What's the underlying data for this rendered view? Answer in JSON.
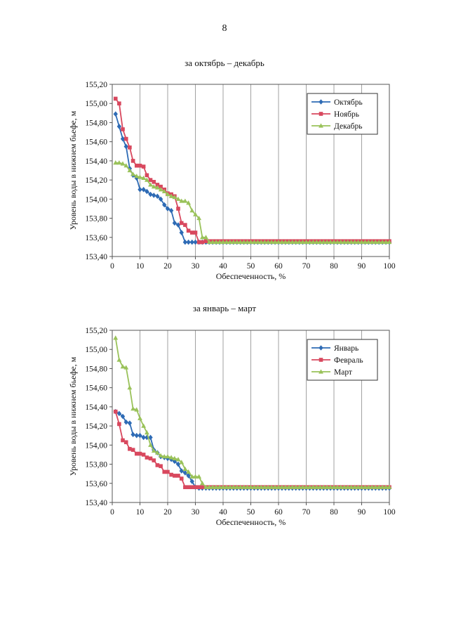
{
  "page": {
    "number": "8"
  },
  "chart_data": [
    {
      "type": "line",
      "title": "за октябрь – декабрь",
      "xlabel": "Обеспеченность, %",
      "ylabel": "Уровень воды в нижнем бьефе, м",
      "xlim": [
        0,
        100
      ],
      "ylim": [
        153.4,
        155.2
      ],
      "x_ticks": [
        "0",
        "10",
        "20",
        "30",
        "40",
        "50",
        "60",
        "70",
        "80",
        "90",
        "100"
      ],
      "y_ticks": [
        "153,40",
        "153,60",
        "153,80",
        "154,00",
        "154,20",
        "154,40",
        "154,60",
        "154,80",
        "155,00",
        "155,20"
      ],
      "grid": "vertical",
      "legend_position": "top-right",
      "series": [
        {
          "name": "Октябрь",
          "color": "#2e6bb5",
          "marker": "diamond",
          "x": [
            1.2,
            2.5,
            3.8,
            5.0,
            6.3,
            7.5,
            8.8,
            10.0,
            11.3,
            12.5,
            13.8,
            15.0,
            16.3,
            17.5,
            18.8,
            20.0,
            21.3,
            22.5,
            23.8,
            25.0,
            26.3,
            27.5,
            28.8,
            30.0,
            31.3,
            32.5,
            33.8,
            35,
            100
          ],
          "y": [
            154.89,
            154.76,
            154.63,
            154.55,
            154.32,
            154.25,
            154.22,
            154.1,
            154.1,
            154.08,
            154.05,
            154.04,
            154.03,
            154.0,
            153.94,
            153.9,
            153.88,
            153.75,
            153.73,
            153.65,
            153.55,
            153.55,
            153.55,
            153.55,
            153.55,
            153.55,
            153.55,
            153.55,
            153.55
          ]
        },
        {
          "name": "Ноябрь",
          "color": "#d8485e",
          "marker": "square",
          "x": [
            1.2,
            2.5,
            3.8,
            5.0,
            6.3,
            7.5,
            8.8,
            10.0,
            11.3,
            12.5,
            13.8,
            15.0,
            16.3,
            17.5,
            18.8,
            20.0,
            21.3,
            22.5,
            23.8,
            25.0,
            26.3,
            27.5,
            28.8,
            30.0,
            31.3,
            32.5,
            33.8,
            35,
            100
          ],
          "y": [
            155.05,
            155.0,
            154.73,
            154.63,
            154.54,
            154.4,
            154.35,
            154.35,
            154.34,
            154.25,
            154.2,
            154.18,
            154.15,
            154.13,
            154.1,
            154.06,
            154.05,
            154.03,
            153.9,
            153.75,
            153.73,
            153.67,
            153.65,
            153.65,
            153.55,
            153.55,
            153.56,
            153.56,
            153.56
          ]
        },
        {
          "name": "Декабрь",
          "color": "#9ac25a",
          "marker": "triangle",
          "x": [
            1.2,
            2.5,
            3.8,
            5.0,
            6.3,
            7.5,
            8.8,
            10.0,
            11.3,
            12.5,
            13.8,
            15.0,
            16.3,
            17.5,
            18.8,
            20.0,
            21.3,
            22.5,
            23.8,
            25.0,
            26.3,
            27.5,
            28.8,
            30.0,
            31.3,
            32.5,
            33.8,
            35,
            100
          ],
          "y": [
            154.38,
            154.38,
            154.37,
            154.35,
            154.3,
            154.26,
            154.24,
            154.23,
            154.22,
            154.2,
            154.15,
            154.13,
            154.12,
            154.1,
            154.08,
            154.05,
            154.03,
            154.02,
            154.0,
            153.98,
            153.98,
            153.96,
            153.88,
            153.84,
            153.8,
            153.6,
            153.6,
            153.55,
            153.55
          ]
        }
      ]
    },
    {
      "type": "line",
      "title": "за январь – март",
      "xlabel": "Обеспеченность, %",
      "ylabel": "Уровень воды в нижнем бьефе, м",
      "xlim": [
        0,
        100
      ],
      "ylim": [
        153.4,
        155.2
      ],
      "x_ticks": [
        "0",
        "10",
        "20",
        "30",
        "40",
        "50",
        "60",
        "70",
        "80",
        "90",
        "100"
      ],
      "y_ticks": [
        "153,40",
        "153,60",
        "153,80",
        "154,00",
        "154,20",
        "154,40",
        "154,60",
        "154,80",
        "155,00",
        "155,20"
      ],
      "grid": "vertical",
      "legend_position": "top-right",
      "series": [
        {
          "name": "Январь",
          "color": "#2e6bb5",
          "marker": "diamond",
          "x": [
            1.2,
            2.5,
            3.8,
            5.0,
            6.3,
            7.5,
            8.8,
            10.0,
            11.3,
            12.5,
            13.8,
            15.0,
            16.3,
            17.5,
            18.8,
            20.0,
            21.3,
            22.5,
            23.8,
            25.0,
            26.3,
            27.5,
            28.8,
            30.0,
            31.3,
            32.5,
            33.8,
            35,
            100
          ],
          "y": [
            154.35,
            154.33,
            154.3,
            154.24,
            154.23,
            154.11,
            154.1,
            154.1,
            154.08,
            154.08,
            154.08,
            153.95,
            153.92,
            153.88,
            153.87,
            153.86,
            153.85,
            153.83,
            153.8,
            153.73,
            153.71,
            153.68,
            153.62,
            153.56,
            153.55,
            153.55,
            153.55,
            153.55,
            153.55
          ]
        },
        {
          "name": "Февраль",
          "color": "#d8485e",
          "marker": "square",
          "x": [
            1.2,
            2.5,
            3.8,
            5.0,
            6.3,
            7.5,
            8.8,
            10.0,
            11.3,
            12.5,
            13.8,
            15.0,
            16.3,
            17.5,
            18.8,
            20.0,
            21.3,
            22.5,
            23.8,
            25.0,
            26.3,
            27.5,
            28.8,
            30.0,
            31.3,
            32.5,
            33.8,
            35,
            100
          ],
          "y": [
            154.35,
            154.22,
            154.05,
            154.03,
            153.96,
            153.95,
            153.91,
            153.91,
            153.9,
            153.87,
            153.86,
            153.84,
            153.79,
            153.78,
            153.72,
            153.72,
            153.69,
            153.68,
            153.68,
            153.65,
            153.56,
            153.56,
            153.56,
            153.56,
            153.56,
            153.56,
            153.56,
            153.56,
            153.56
          ]
        },
        {
          "name": "Март",
          "color": "#9ac25a",
          "marker": "triangle",
          "x": [
            1.2,
            2.5,
            3.8,
            5.0,
            6.3,
            7.5,
            8.8,
            10.0,
            11.3,
            12.5,
            13.8,
            15.0,
            16.3,
            17.5,
            18.8,
            20.0,
            21.3,
            22.5,
            23.8,
            25.0,
            26.3,
            27.5,
            28.8,
            30.0,
            31.3,
            32.5,
            33.8,
            35,
            100
          ],
          "y": [
            155.12,
            154.89,
            154.82,
            154.81,
            154.6,
            154.38,
            154.37,
            154.28,
            154.2,
            154.13,
            154.0,
            153.94,
            153.92,
            153.89,
            153.88,
            153.88,
            153.87,
            153.86,
            153.85,
            153.82,
            153.75,
            153.72,
            153.67,
            153.67,
            153.67,
            153.6,
            153.56,
            153.56,
            153.56
          ]
        }
      ]
    }
  ]
}
